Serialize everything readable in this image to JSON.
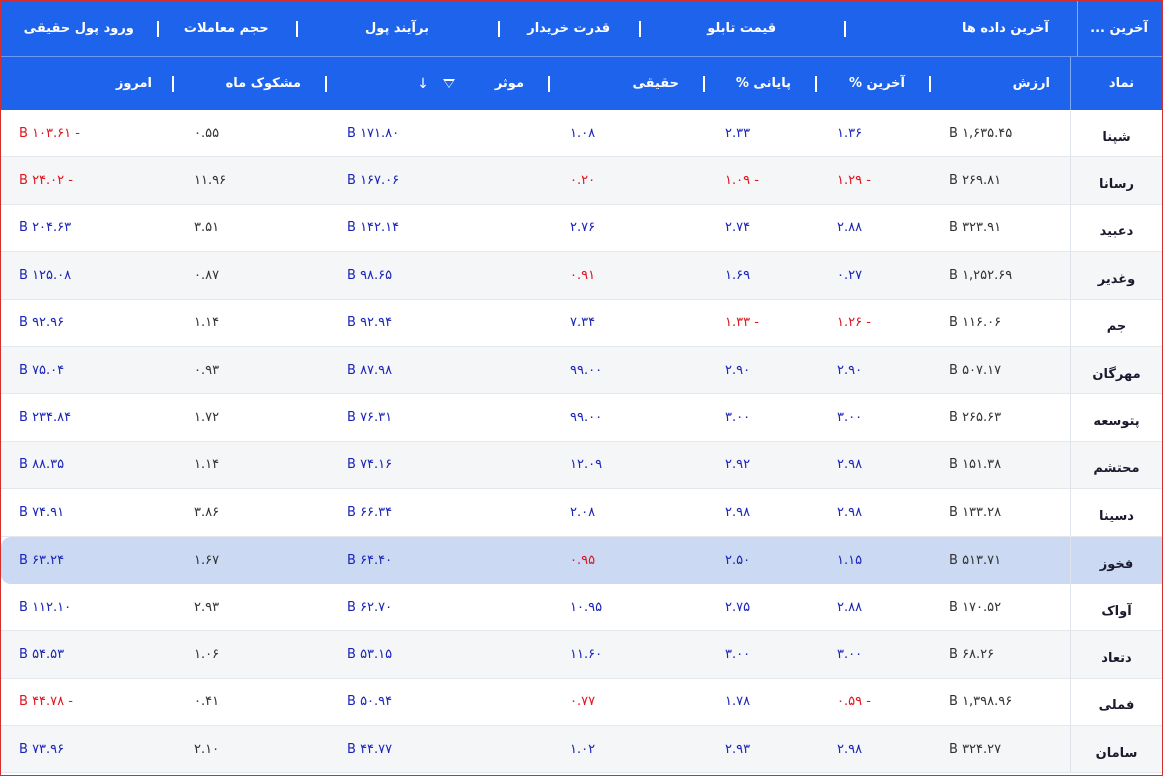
{
  "header": {
    "top": {
      "symbol": "آخرین ...",
      "last_data": "آخرین داده ها",
      "board_price": "قیمت تابلو",
      "buyer_power": "قدرت خریدار",
      "money_flow": "برآیند پول",
      "trade_volume": "حجم معاملات",
      "real_money_inflow": "ورود پول حقیقی"
    },
    "bottom": {
      "symbol": "نماد",
      "value": "ارزش",
      "last_pct": "آخرین %",
      "final_pct": "پایانی %",
      "real": "حقیقی",
      "effective": "موثر",
      "suspicious_month": "مشکوک ماه",
      "today": "امروز"
    },
    "icons": {
      "filter": "filter-icon",
      "sort": "arrow-down-icon"
    }
  },
  "colors": {
    "header_bg": "#1d63ec",
    "positive": "#1a25b8",
    "negative": "#e0151e",
    "selected_row": "#ccd9f3"
  },
  "rows": [
    {
      "symbol": "شپنا",
      "value": "۱,۶۳۵.۴۵ B",
      "last": "۱.۳۶",
      "final": "۲.۳۳",
      "real": "۱.۰۸",
      "effective": "۱۷۱.۸۰ B",
      "suspicious": "۰.۵۵",
      "today": "- ۱۰۳.۶۱ B",
      "last_neg": false,
      "final_neg": false,
      "real_neg": false,
      "today_neg": true
    },
    {
      "symbol": "رسانا",
      "value": "۲۶۹.۸۱ B",
      "last": "- ۱.۲۹",
      "final": "- ۱.۰۹",
      "real": "۰.۲۰",
      "effective": "۱۶۷.۰۶ B",
      "suspicious": "۱۱.۹۶",
      "today": "- ۲۴.۰۲ B",
      "last_neg": true,
      "final_neg": true,
      "real_neg": true,
      "today_neg": true
    },
    {
      "symbol": "دعبید",
      "value": "۳۲۳.۹۱ B",
      "last": "۲.۸۸",
      "final": "۲.۷۴",
      "real": "۲.۷۶",
      "effective": "۱۴۲.۱۴ B",
      "suspicious": "۳.۵۱",
      "today": "۲۰۴.۶۳ B",
      "last_neg": false,
      "final_neg": false,
      "real_neg": false,
      "today_neg": false
    },
    {
      "symbol": "وغدیر",
      "value": "۱,۲۵۲.۶۹ B",
      "last": "۰.۲۷",
      "final": "۱.۶۹",
      "real": "۰.۹۱",
      "effective": "۹۸.۶۵ B",
      "suspicious": "۰.۸۷",
      "today": "۱۲۵.۰۸ B",
      "last_neg": false,
      "final_neg": false,
      "real_neg": true,
      "today_neg": false
    },
    {
      "symbol": "جم",
      "value": "۱۱۶.۰۶ B",
      "last": "- ۱.۲۶",
      "final": "- ۱.۳۳",
      "real": "۷.۳۴",
      "effective": "۹۲.۹۴ B",
      "suspicious": "۱.۱۴",
      "today": "۹۲.۹۶ B",
      "last_neg": true,
      "final_neg": true,
      "real_neg": false,
      "today_neg": false
    },
    {
      "symbol": "مهرگان",
      "value": "۵۰۷.۱۷ B",
      "last": "۲.۹۰",
      "final": "۲.۹۰",
      "real": "۹۹.۰۰",
      "effective": "۸۷.۹۸ B",
      "suspicious": "۰.۹۳",
      "today": "۷۵.۰۴ B",
      "last_neg": false,
      "final_neg": false,
      "real_neg": false,
      "today_neg": false
    },
    {
      "symbol": "پتوسعه",
      "value": "۲۶۵.۶۳ B",
      "last": "۳.۰۰",
      "final": "۳.۰۰",
      "real": "۹۹.۰۰",
      "effective": "۷۶.۳۱ B",
      "suspicious": "۱.۷۲",
      "today": "۲۳۴.۸۴ B",
      "last_neg": false,
      "final_neg": false,
      "real_neg": false,
      "today_neg": false
    },
    {
      "symbol": "محتشم",
      "value": "۱۵۱.۳۸ B",
      "last": "۲.۹۸",
      "final": "۲.۹۲",
      "real": "۱۲.۰۹",
      "effective": "۷۴.۱۶ B",
      "suspicious": "۱.۱۴",
      "today": "۸۸.۳۵ B",
      "last_neg": false,
      "final_neg": false,
      "real_neg": false,
      "today_neg": false
    },
    {
      "symbol": "دسینا",
      "value": "۱۳۳.۲۸ B",
      "last": "۲.۹۸",
      "final": "۲.۹۸",
      "real": "۲.۰۸",
      "effective": "۶۶.۳۴ B",
      "suspicious": "۳.۸۶",
      "today": "۷۴.۹۱ B",
      "last_neg": false,
      "final_neg": false,
      "real_neg": false,
      "today_neg": false
    },
    {
      "symbol": "فخوز",
      "value": "۵۱۳.۷۱ B",
      "last": "۱.۱۵",
      "final": "۲.۵۰",
      "real": "۰.۹۵",
      "effective": "۶۴.۴۰ B",
      "suspicious": "۱.۶۷",
      "today": "۶۳.۲۴ B",
      "last_neg": false,
      "final_neg": false,
      "real_neg": true,
      "today_neg": false,
      "selected": true
    },
    {
      "symbol": "آواک",
      "value": "۱۷۰.۵۲ B",
      "last": "۲.۸۸",
      "final": "۲.۷۵",
      "real": "۱۰.۹۵",
      "effective": "۶۲.۷۰ B",
      "suspicious": "۲.۹۳",
      "today": "۱۱۲.۱۰ B",
      "last_neg": false,
      "final_neg": false,
      "real_neg": false,
      "today_neg": false
    },
    {
      "symbol": "دتعاد",
      "value": "۶۸.۲۶ B",
      "last": "۳.۰۰",
      "final": "۳.۰۰",
      "real": "۱۱.۶۰",
      "effective": "۵۳.۱۵ B",
      "suspicious": "۱.۰۶",
      "today": "۵۴.۵۳ B",
      "last_neg": false,
      "final_neg": false,
      "real_neg": false,
      "today_neg": false
    },
    {
      "symbol": "فملی",
      "value": "۱,۳۹۸.۹۶ B",
      "last": "- ۰.۵۹",
      "final": "۱.۷۸",
      "real": "۰.۷۷",
      "effective": "۵۰.۹۴ B",
      "suspicious": "۰.۴۱",
      "today": "- ۴۴.۷۸ B",
      "last_neg": true,
      "final_neg": false,
      "real_neg": true,
      "today_neg": true
    },
    {
      "symbol": "سامان",
      "value": "۳۲۴.۲۷ B",
      "last": "۲.۹۸",
      "final": "۲.۹۳",
      "real": "۱.۰۲",
      "effective": "۴۴.۷۷ B",
      "suspicious": "۲.۱۰",
      "today": "۷۳.۹۶ B",
      "last_neg": false,
      "final_neg": false,
      "real_neg": false,
      "today_neg": false
    }
  ]
}
